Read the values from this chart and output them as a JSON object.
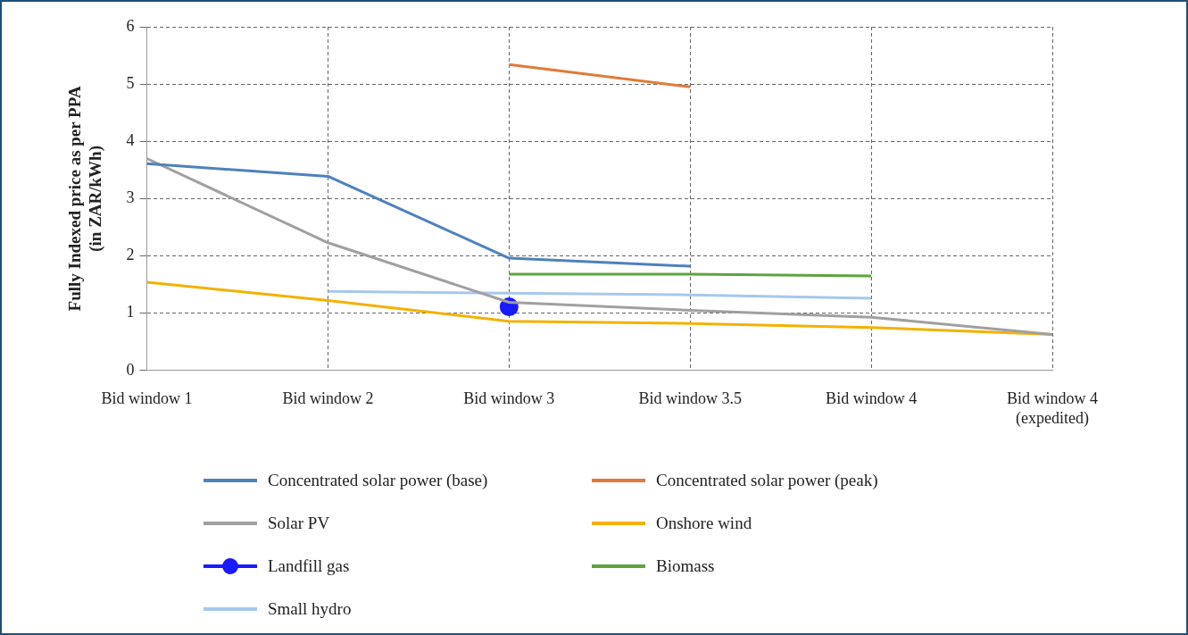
{
  "chart_data": {
    "type": "line",
    "ylabel": "Fully Indexed price as per PPA (in ZAR/kWh)",
    "categories": [
      "Bid window 1",
      "Bid window 2",
      "Bid window 3",
      "Bid window 3.5",
      "Bid window 4",
      "Bid window 4 (expedited)"
    ],
    "ylim": [
      0,
      6
    ],
    "yticks": [
      0,
      1,
      2,
      3,
      4,
      5,
      6
    ],
    "grid": true,
    "legend": "bottom",
    "marker": "none",
    "line_style": "solid",
    "series": [
      {
        "name": "Concentrated solar power (base)",
        "color": "#4f81bd",
        "values": [
          3.61,
          3.39,
          1.96,
          1.82,
          null,
          null
        ]
      },
      {
        "name": "Concentrated solar power (peak)",
        "color": "#e07b39",
        "values": [
          null,
          null,
          5.34,
          4.95,
          null,
          null
        ]
      },
      {
        "name": "Solar PV",
        "color": "#a0a0a0",
        "values": [
          3.7,
          2.23,
          1.19,
          1.05,
          0.93,
          0.63
        ]
      },
      {
        "name": "Onshore wind",
        "color": "#f2b200",
        "values": [
          1.54,
          1.22,
          0.86,
          0.82,
          0.75,
          0.63
        ]
      },
      {
        "name": "Landfill gas",
        "color": "#1a1aff",
        "marker": "circle",
        "values": [
          null,
          null,
          1.11,
          null,
          null,
          null
        ]
      },
      {
        "name": "Biomass",
        "color": "#5fa33f",
        "values": [
          null,
          null,
          1.68,
          1.68,
          1.65,
          null
        ]
      },
      {
        "name": "Small hydro",
        "color": "#a6c8ec",
        "values": [
          null,
          1.38,
          1.35,
          1.32,
          1.26,
          null
        ]
      }
    ]
  }
}
